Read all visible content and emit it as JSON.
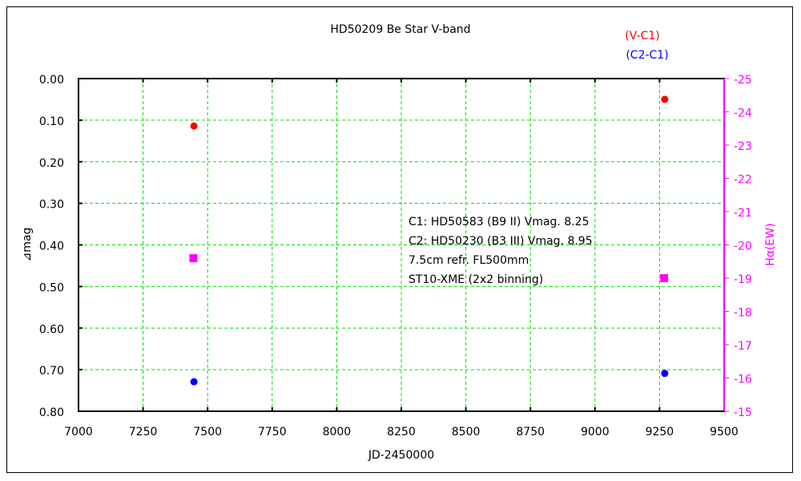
{
  "chart_data": {
    "type": "scatter",
    "title": "HD50209    Be Star    V-band",
    "xlabel": "JD-2450000",
    "ylabel": "⊿mag",
    "y2label": "Hα(EW)",
    "xlim": [
      7000,
      9500
    ],
    "ylim": [
      0.0,
      0.8
    ],
    "y_inverted": true,
    "y2lim": [
      -25,
      -15
    ],
    "y2_inverted": true,
    "x_ticks": [
      "7000",
      "7250",
      "7500",
      "7750",
      "8000",
      "8250",
      "8500",
      "8750",
      "9000",
      "9250",
      "9500"
    ],
    "y_ticks": [
      "0.00",
      "0.10",
      "0.20",
      "0.30",
      "0.40",
      "0.50",
      "0.60",
      "0.70",
      "0.80"
    ],
    "y2_ticks": [
      "-25",
      "-24",
      "-23",
      "-22",
      "-21",
      "-20",
      "-19",
      "-18",
      "-17",
      "-16",
      "-15"
    ],
    "grid": true,
    "legend_placement": "top-right",
    "series": [
      {
        "name": "(V-C1)",
        "color": "#ff0000",
        "marker": "circle",
        "axis": "left",
        "x": [
          7447,
          9270
        ],
        "y": [
          0.114,
          0.05
        ]
      },
      {
        "name": "(C2-C1)",
        "color": "#0000ff",
        "marker": "circle",
        "axis": "left",
        "x": [
          7447,
          9270
        ],
        "y": [
          0.729,
          0.709
        ]
      },
      {
        "color": "#ff00ff",
        "marker": "square",
        "axis": "right",
        "x": [
          7445,
          9268
        ],
        "y": [
          -19.6,
          -19.0
        ]
      }
    ],
    "annotations": [
      "C1: HD50583 (B9 II) Vmag. 8.25",
      "C2: HD50230 (B3 III) Vmag. 8.95",
      "7.5cm refr. FL500mm",
      "ST10-XME (2x2 binning)"
    ],
    "colors": {
      "grid": "#00e000",
      "axis": "#000000",
      "y2axis": "#ff00ff"
    }
  }
}
